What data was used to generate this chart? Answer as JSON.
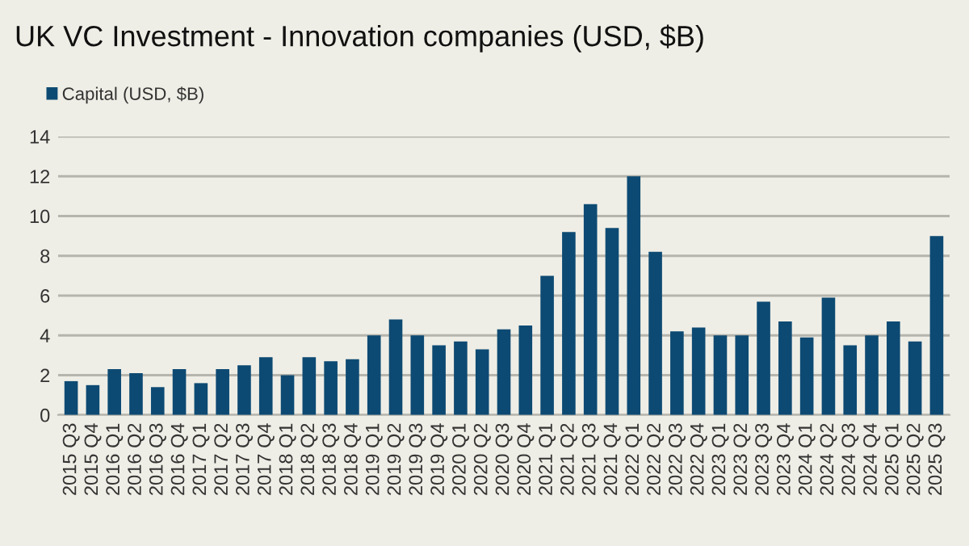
{
  "chart_data": {
    "type": "bar",
    "title": "UK VC Investment - Innovation companies (USD, $B)",
    "categories": [
      "2015 Q3",
      "2015 Q4",
      "2016 Q1",
      "2016 Q2",
      "2016 Q3",
      "2016 Q4",
      "2017 Q1",
      "2017 Q2",
      "2017 Q3",
      "2017 Q4",
      "2018 Q1",
      "2018 Q2",
      "2018 Q3",
      "2018 Q4",
      "2019 Q1",
      "2019 Q2",
      "2019 Q3",
      "2019 Q4",
      "2020 Q1",
      "2020 Q2",
      "2020 Q3",
      "2020 Q4",
      "2021 Q1",
      "2021 Q2",
      "2021 Q3",
      "2021 Q4",
      "2022 Q1",
      "2022 Q2",
      "2022 Q3",
      "2022 Q4",
      "2023 Q1",
      "2023 Q2",
      "2023 Q3",
      "2023 Q4",
      "2024 Q1",
      "2024 Q2",
      "2024 Q3",
      "2024 Q4",
      "2025 Q1",
      "2025 Q2",
      "2025 Q3"
    ],
    "series": [
      {
        "name": "Capital (USD, $B)",
        "color": "#0d4a73",
        "values": [
          1.7,
          1.5,
          2.3,
          2.1,
          1.4,
          2.3,
          1.6,
          2.3,
          2.5,
          2.9,
          2.0,
          2.9,
          2.7,
          2.8,
          4.0,
          4.8,
          4.0,
          3.5,
          3.7,
          3.3,
          4.3,
          4.5,
          7.0,
          9.2,
          10.6,
          9.4,
          12.0,
          8.2,
          4.2,
          4.4,
          4.0,
          4.0,
          5.7,
          4.7,
          3.9,
          5.9,
          3.5,
          4.0,
          4.7,
          3.7,
          9.0
        ]
      }
    ],
    "ylim": [
      0,
      14
    ],
    "yticks": [
      0,
      2,
      4,
      6,
      8,
      10,
      12,
      14
    ],
    "grid": "y",
    "legend": "top left"
  }
}
